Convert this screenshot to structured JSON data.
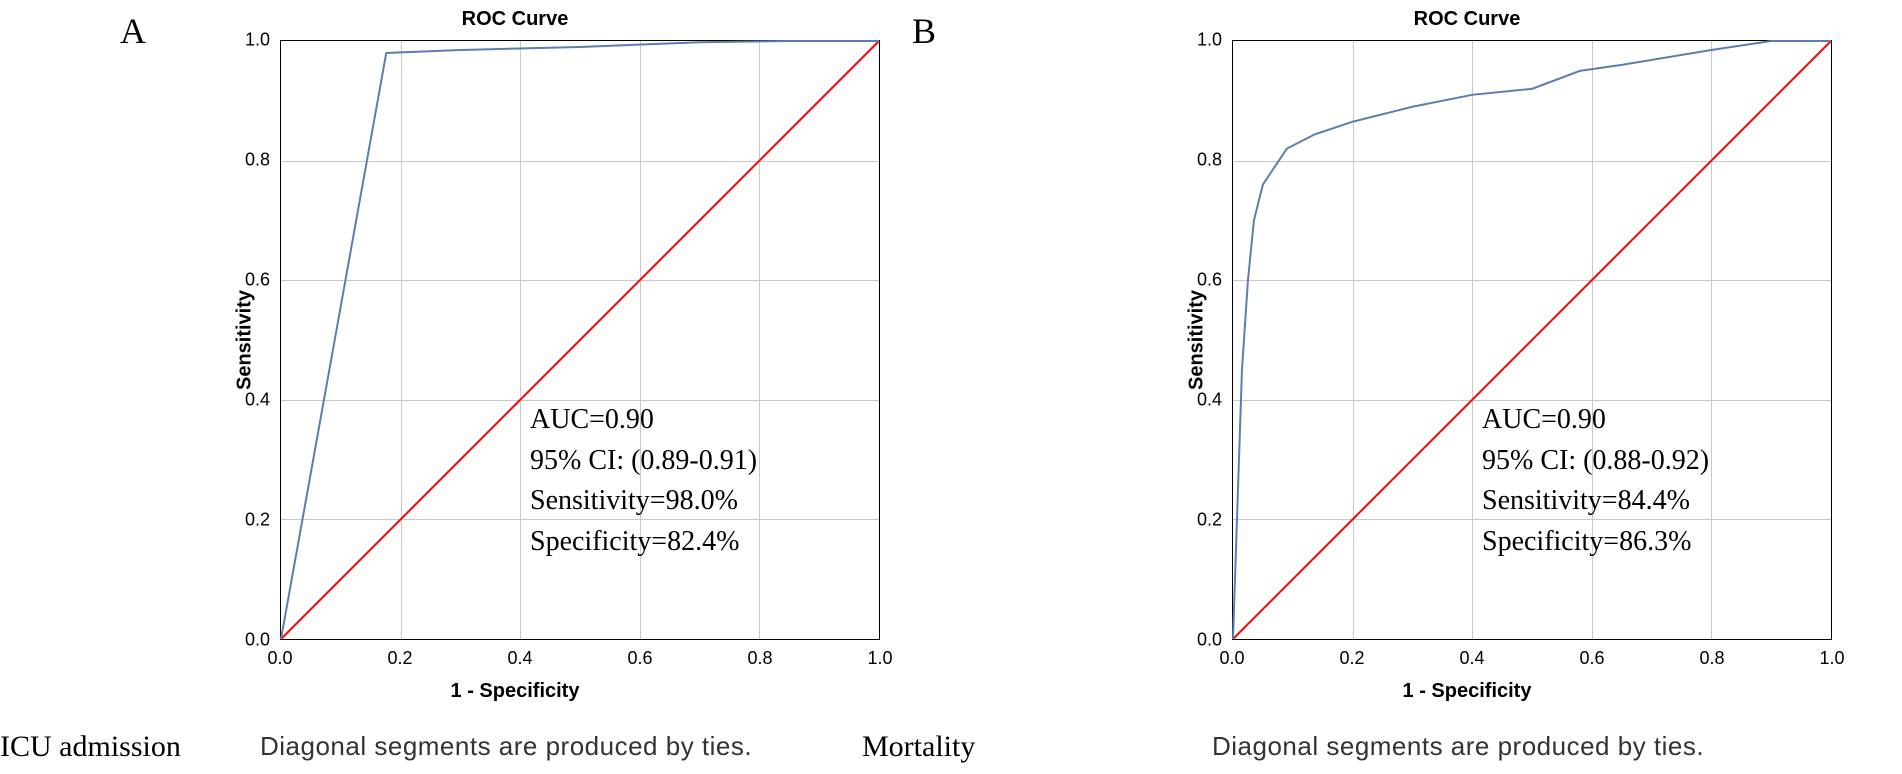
{
  "panels": [
    {
      "letter": "A",
      "title": "ROC Curve",
      "xlabel": "1 - Specificity",
      "ylabel": "Sensitivity",
      "xlim": [
        0.0,
        1.0
      ],
      "ylim": [
        0.0,
        1.0
      ],
      "tick_step": 0.2,
      "ticks": [
        "0.0",
        "0.2",
        "0.4",
        "0.6",
        "0.8",
        "1.0"
      ],
      "grid_color": "#c8c8c8",
      "background_color": "#ffffff",
      "diagonal_color": "#ff0000",
      "diagonal_width": 2,
      "curve_color": "#5b7db1",
      "curve_width": 2,
      "roc_points": [
        [
          0.0,
          0.0
        ],
        [
          0.176,
          0.98
        ],
        [
          0.3,
          0.985
        ],
        [
          0.5,
          0.99
        ],
        [
          0.7,
          0.998
        ],
        [
          0.85,
          1.0
        ],
        [
          1.0,
          1.0
        ]
      ],
      "stats": {
        "auc": "AUC=0.90",
        "ci": "95% CI: (0.89-0.91)",
        "sens": "Sensitivity=98.0%",
        "spec": "Specificity=82.4%"
      },
      "stats_fontsize": 28,
      "letter_fontsize": 36,
      "footer_left": "ICU admission",
      "footer_note": "Diagonal segments are produced by ties."
    },
    {
      "letter": "B",
      "title": "ROC Curve",
      "xlabel": "1 - Specificity",
      "ylabel": "Sensitivity",
      "xlim": [
        0.0,
        1.0
      ],
      "ylim": [
        0.0,
        1.0
      ],
      "tick_step": 0.2,
      "ticks": [
        "0.0",
        "0.2",
        "0.4",
        "0.6",
        "0.8",
        "1.0"
      ],
      "grid_color": "#c8c8c8",
      "background_color": "#ffffff",
      "diagonal_color": "#ff0000",
      "diagonal_width": 2,
      "curve_color": "#5b7db1",
      "curve_width": 2,
      "roc_points": [
        [
          0.0,
          0.0
        ],
        [
          0.015,
          0.45
        ],
        [
          0.025,
          0.6
        ],
        [
          0.035,
          0.7
        ],
        [
          0.05,
          0.76
        ],
        [
          0.09,
          0.82
        ],
        [
          0.137,
          0.844
        ],
        [
          0.2,
          0.865
        ],
        [
          0.3,
          0.89
        ],
        [
          0.4,
          0.91
        ],
        [
          0.5,
          0.92
        ],
        [
          0.58,
          0.95
        ],
        [
          0.65,
          0.96
        ],
        [
          0.8,
          0.985
        ],
        [
          0.9,
          1.0
        ],
        [
          1.0,
          1.0
        ]
      ],
      "stats": {
        "auc": "AUC=0.90",
        "ci": "95% CI: (0.88-0.92)",
        "sens": "Sensitivity=84.4%",
        "spec": "Specificity=86.3%"
      },
      "stats_fontsize": 28,
      "letter_fontsize": 36,
      "footer_left": "Mortality",
      "footer_note": "Diagonal segments are produced by ties."
    }
  ]
}
